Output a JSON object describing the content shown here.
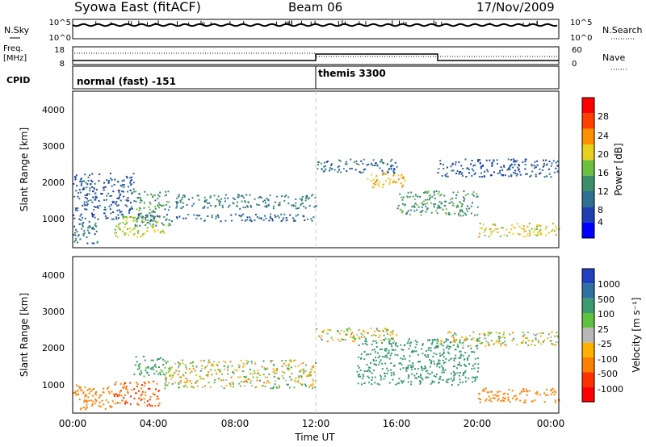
{
  "header": {
    "station": "Syowa East (fitACF)",
    "beam": "Beam 06",
    "date": "17/Nov/2009"
  },
  "nsky_panel": {
    "left_label": "N.Sky",
    "right_label": "N.Search",
    "left_ticks": [
      "10^5",
      "10^0"
    ],
    "right_ticks": [
      "10^5",
      "10^0"
    ]
  },
  "freq_panel": {
    "left_label_1": "Freq.",
    "left_label_2": "[MHz]",
    "right_label": "Nave",
    "left_ticks": [
      "18",
      "8"
    ],
    "right_ticks": [
      "60",
      "0"
    ]
  },
  "cpid_panel": {
    "label": "CPID",
    "modes": [
      {
        "name": "normal (fast) -151",
        "start_hour": 0,
        "end_hour": 12
      },
      {
        "name": "themis 3300",
        "start_hour": 12,
        "end_hour": 24
      }
    ]
  },
  "x_axis": {
    "label": "Time UT",
    "ticks": [
      "00:00",
      "04:00",
      "08:00",
      "12:00",
      "16:00",
      "20:00",
      "00:00"
    ]
  },
  "power_panel": {
    "ylabel": "Slant Range [km]",
    "yticks": [
      "4000",
      "3000",
      "2000",
      "1000"
    ],
    "colorbar_label": "Power [dB]",
    "colorbar_ticks": [
      "28",
      "24",
      "20",
      "16",
      "12",
      "8",
      "4"
    ],
    "colors": [
      "#0000ff",
      "#1e3fb0",
      "#2f6f8f",
      "#3b8f6a",
      "#70c040",
      "#e8d020",
      "#ff9000",
      "#ff4000",
      "#ff0000"
    ]
  },
  "velocity_panel": {
    "ylabel": "Slant Range [km]",
    "yticks": [
      "4000",
      "3000",
      "2000",
      "1000"
    ],
    "colorbar_label": "Velocity [m s⁻¹]",
    "colorbar_ticks": [
      "1000",
      "500",
      "100",
      "25",
      "-25",
      "-100",
      "-500",
      "-1000"
    ],
    "colors": [
      "#2040c0",
      "#3070a0",
      "#3a9a70",
      "#60c040",
      "#b8b8b8",
      "#ffb000",
      "#ff8000",
      "#ff3000",
      "#ff0000"
    ]
  },
  "chart_data": [
    {
      "type": "heatmap",
      "title": "Power [dB]",
      "xlabel": "Time UT",
      "ylabel": "Slant Range [km]",
      "x_range_hours": [
        0,
        24
      ],
      "y_range_km": [
        180,
        4600
      ],
      "colorbar_range_db": [
        0,
        32
      ],
      "regions": [
        {
          "t0": 0.0,
          "t1": 1.2,
          "r0": 300,
          "r1": 1000,
          "level": 8
        },
        {
          "t0": 0.0,
          "t1": 3.0,
          "r0": 1000,
          "r1": 2300,
          "level": 6
        },
        {
          "t0": 2.0,
          "t1": 4.5,
          "r0": 500,
          "r1": 1100,
          "level": 18
        },
        {
          "t0": 3.0,
          "t1": 4.8,
          "r0": 800,
          "r1": 1800,
          "level": 12
        },
        {
          "t0": 3.0,
          "t1": 12.0,
          "r0": 950,
          "r1": 1150,
          "level": 7
        },
        {
          "t0": 5.0,
          "t1": 12.0,
          "r0": 1300,
          "r1": 1700,
          "level": 10
        },
        {
          "t0": 12.0,
          "t1": 16.0,
          "r0": 2300,
          "r1": 2700,
          "level": 8
        },
        {
          "t0": 14.5,
          "t1": 16.5,
          "r0": 1900,
          "r1": 2300,
          "level": 22
        },
        {
          "t0": 16.0,
          "t1": 20.0,
          "r0": 1100,
          "r1": 1800,
          "level": 12
        },
        {
          "t0": 20.0,
          "t1": 24.0,
          "r0": 500,
          "r1": 900,
          "level": 20
        },
        {
          "t0": 18.0,
          "t1": 24.0,
          "r0": 2200,
          "r1": 2700,
          "level": 6
        }
      ]
    },
    {
      "type": "heatmap",
      "title": "Velocity [m s⁻¹]",
      "xlabel": "Time UT",
      "ylabel": "Slant Range [km]",
      "x_range_hours": [
        0,
        24
      ],
      "y_range_km": [
        180,
        4600
      ],
      "regions": [
        {
          "t0": 0.0,
          "t1": 2.0,
          "r0": 300,
          "r1": 1000,
          "velocity": -300
        },
        {
          "t0": 2.0,
          "t1": 4.3,
          "r0": 400,
          "r1": 1100,
          "velocity": -400
        },
        {
          "t0": 3.0,
          "t1": 4.5,
          "r0": 1200,
          "r1": 1800,
          "velocity": 100
        },
        {
          "t0": 4.5,
          "t1": 12.0,
          "r0": 900,
          "r1": 1700,
          "velocity": 0
        },
        {
          "t0": 12.0,
          "t1": 16.0,
          "r0": 2200,
          "r1": 2600,
          "velocity": 0
        },
        {
          "t0": 14.0,
          "t1": 20.0,
          "r0": 1000,
          "r1": 2300,
          "velocity": 200
        },
        {
          "t0": 20.0,
          "t1": 24.0,
          "r0": 500,
          "r1": 900,
          "velocity": -200
        },
        {
          "t0": 18.0,
          "t1": 24.0,
          "r0": 2100,
          "r1": 2500,
          "velocity": 0
        }
      ]
    }
  ]
}
